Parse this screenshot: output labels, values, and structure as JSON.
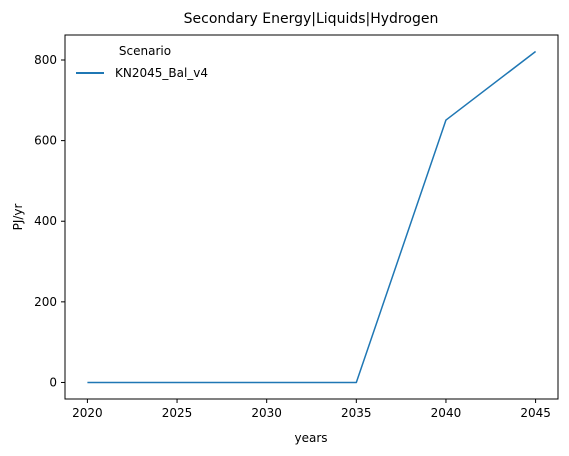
{
  "chart_data": {
    "type": "line",
    "title": "Secondary Energy|Liquids|Hydrogen",
    "xlabel": "years",
    "ylabel": "PJ/yr",
    "x": [
      2020,
      2025,
      2030,
      2035,
      2040,
      2045
    ],
    "series": [
      {
        "name": "KN2045_Bal_v4",
        "color": "#1f77b4",
        "values": [
          0,
          0,
          0,
          0,
          651,
          821
        ]
      }
    ],
    "xticks": [
      2020,
      2025,
      2030,
      2035,
      2040,
      2045
    ],
    "yticks": [
      0,
      200,
      400,
      600,
      800
    ],
    "xlim": [
      2018.75,
      2046.25
    ],
    "ylim": [
      -41,
      862
    ],
    "grid": false,
    "legend": {
      "title": "Scenario",
      "placement": "top-left"
    }
  }
}
